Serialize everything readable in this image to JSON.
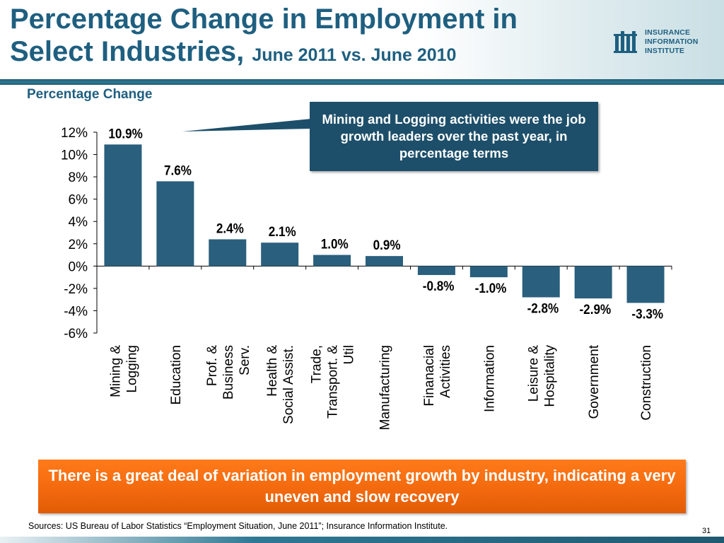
{
  "slide": {
    "title_main": "Percentage Change in Employment in Select Industries,",
    "title_line1": "Percentage Change in Employment in",
    "title_line2": "Select Industries,",
    "title_sub": "June 2011 vs. June 2010",
    "y_axis_caption": "Percentage Change",
    "callout": "Mining and Logging activities were the job growth leaders over the past year, in percentage terms",
    "bottom_message": "There is a great deal of variation in employment growth by industry, indicating a very uneven and slow recovery",
    "sources": "Sources: US Bureau of Labor Statistics “Employment Situation, June 2011”; Insurance Information Institute.",
    "page_number": "31"
  },
  "logo": {
    "lines": [
      "INSURANCE",
      "INFORMATION",
      "INSTITUTE"
    ]
  },
  "colors": {
    "bar": "#2a5f7d",
    "title": "#1e5f80",
    "callout_bg": "#1d4f6a",
    "message_bg": "#f36a0e"
  },
  "chart_data": {
    "type": "bar",
    "title": "",
    "xlabel": "",
    "ylabel": "Percentage Change",
    "ylim": [
      -6,
      12
    ],
    "yticks": [
      "12%",
      "10%",
      "8%",
      "6%",
      "4%",
      "2%",
      "0%",
      "-2%",
      "-4%",
      "-6%"
    ],
    "grid": false,
    "categories": [
      [
        "Mining &",
        "Logging"
      ],
      [
        "Education"
      ],
      [
        "Prof. &",
        "Business",
        "Serv."
      ],
      [
        "Health &",
        "Social Assist."
      ],
      [
        "Trade,",
        "Transport. &",
        "Util"
      ],
      [
        "Manufacturing"
      ],
      [
        "Finanacial",
        "Activities"
      ],
      [
        "Information"
      ],
      [
        "Leisure &",
        "Hospitality"
      ],
      [
        "Government"
      ],
      [
        "Construction"
      ]
    ],
    "values": [
      10.9,
      7.6,
      2.4,
      2.1,
      1.0,
      0.9,
      -0.8,
      -1.0,
      -2.8,
      -2.9,
      -3.3
    ],
    "data_labels": [
      "10.9%",
      "7.6%",
      "2.4%",
      "2.1%",
      "1.0%",
      "0.9%",
      "-0.8%",
      "-1.0%",
      "-2.8%",
      "-2.9%",
      "-3.3%"
    ]
  }
}
